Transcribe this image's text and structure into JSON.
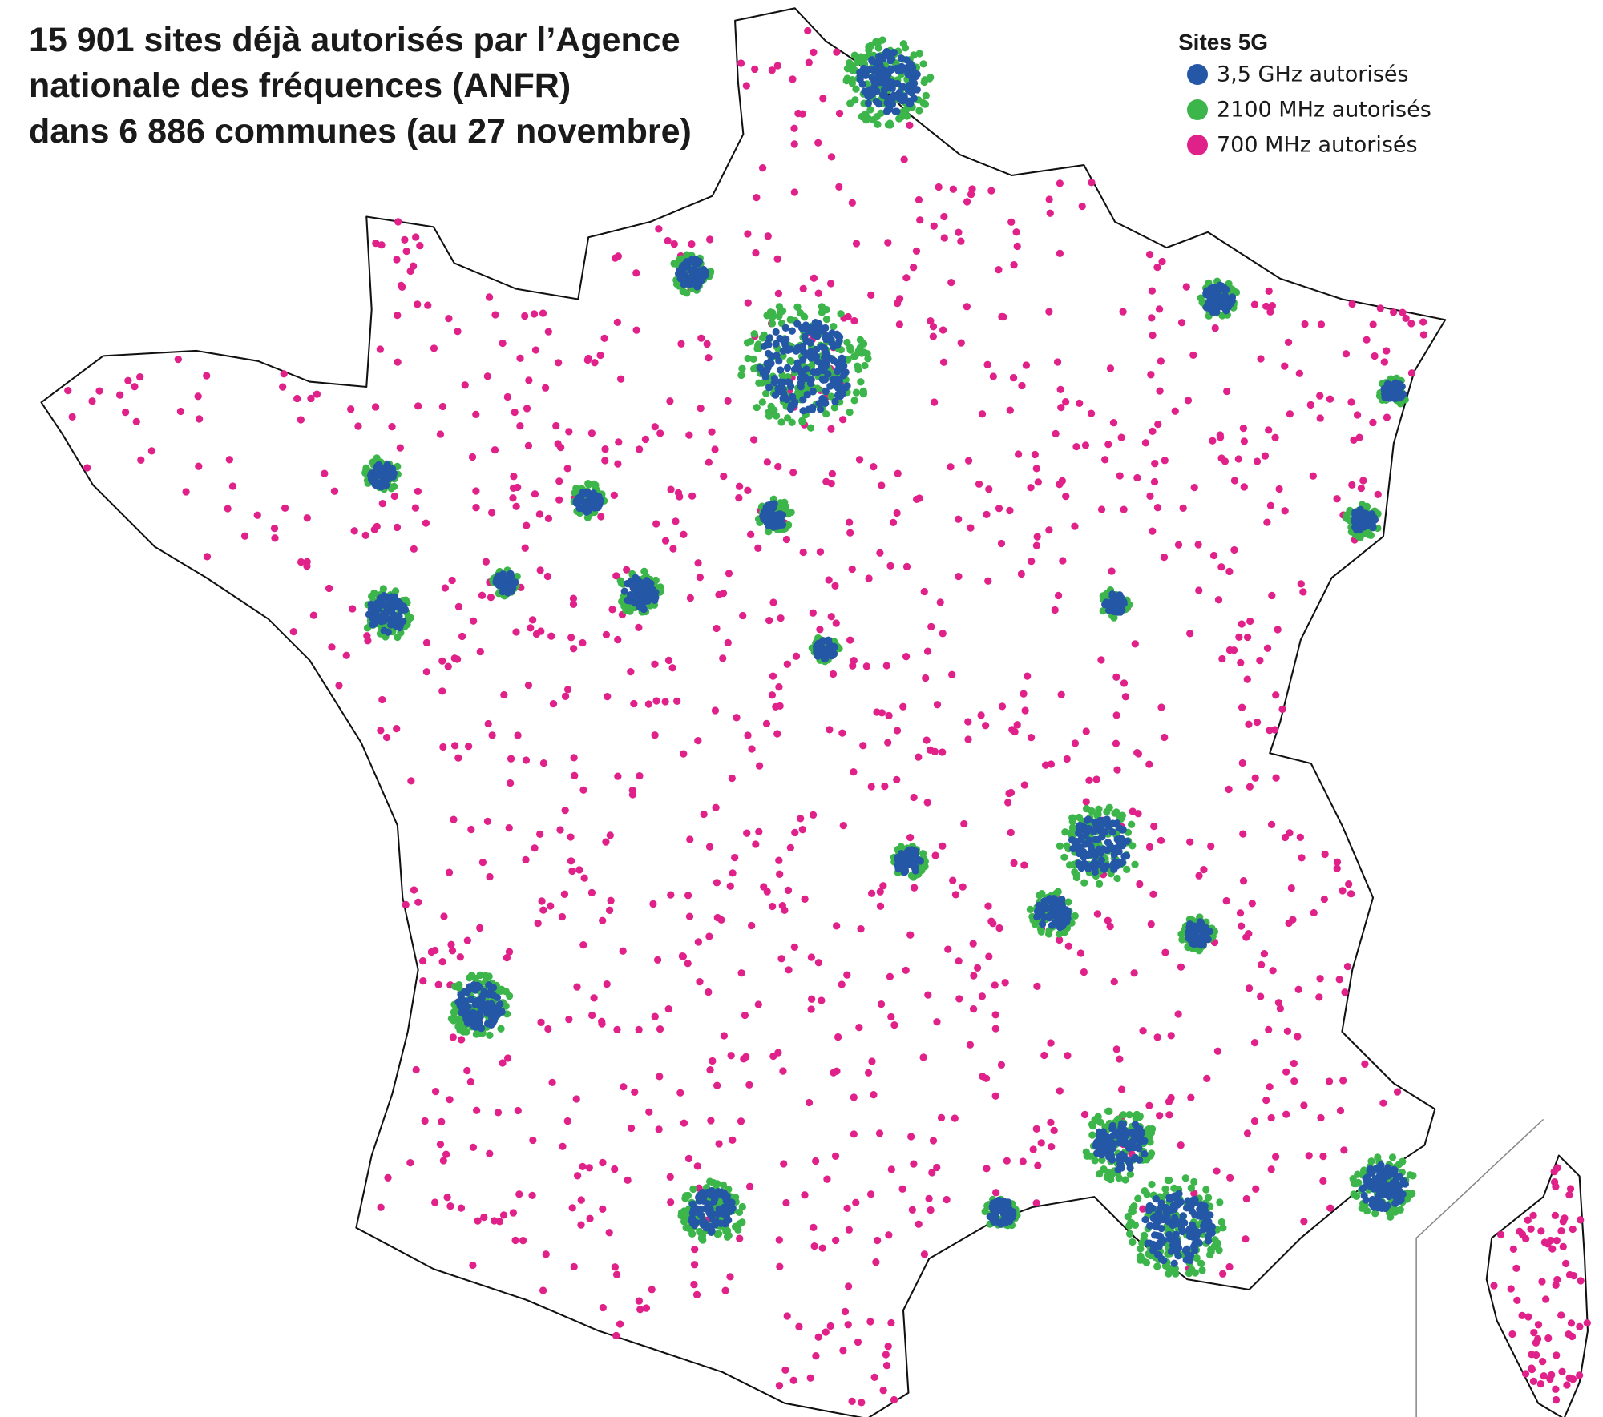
{
  "title": {
    "lines": [
      "15 901 sites déjà autorisés par l’Agence",
      "nationale des fréquences (ANFR)",
      "dans 6 886 communes (au 27 novembre)"
    ]
  },
  "legend": {
    "title": "Sites 5G",
    "items": [
      {
        "label": "3,5 GHz autorisés",
        "color": "#2457a6"
      },
      {
        "label": "2100 MHz autorisés",
        "color": "#3cb54a"
      },
      {
        "label": "700 MHz autorisés",
        "color": "#e0218a"
      }
    ]
  }
}
